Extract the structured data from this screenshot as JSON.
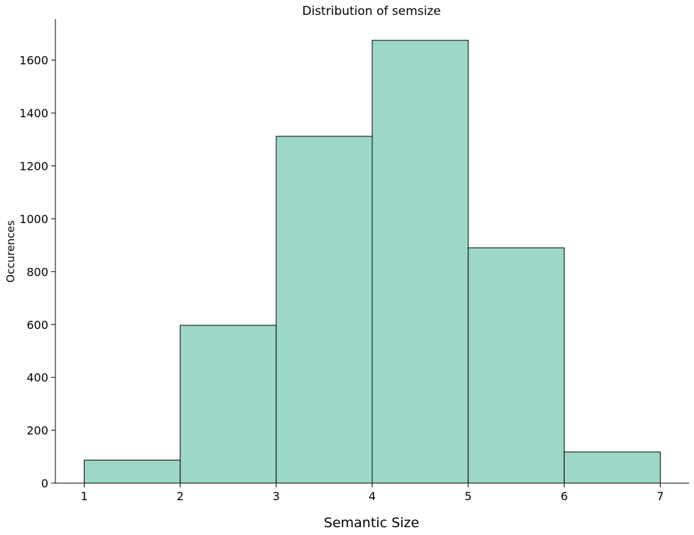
{
  "chart_data": {
    "type": "bar",
    "title": "Distribution of semsize",
    "xlabel": "Semantic Size",
    "ylabel": "Occurences",
    "bins": [
      {
        "start": 1,
        "end": 2,
        "value": 87
      },
      {
        "start": 2,
        "end": 3,
        "value": 597
      },
      {
        "start": 3,
        "end": 4,
        "value": 1312
      },
      {
        "start": 4,
        "end": 5,
        "value": 1675
      },
      {
        "start": 5,
        "end": 6,
        "value": 890
      },
      {
        "start": 6,
        "end": 7,
        "value": 118
      }
    ],
    "xticks": [
      1,
      2,
      3,
      4,
      5,
      6,
      7
    ],
    "yticks": [
      0,
      200,
      400,
      600,
      800,
      1000,
      1200,
      1400,
      1600
    ],
    "xlim": [
      0.7,
      7.3
    ],
    "ylim": [
      0,
      1755
    ],
    "grid": false,
    "legend": "none",
    "bar_color": "#9bd8c8",
    "edge_color": "#000000"
  }
}
